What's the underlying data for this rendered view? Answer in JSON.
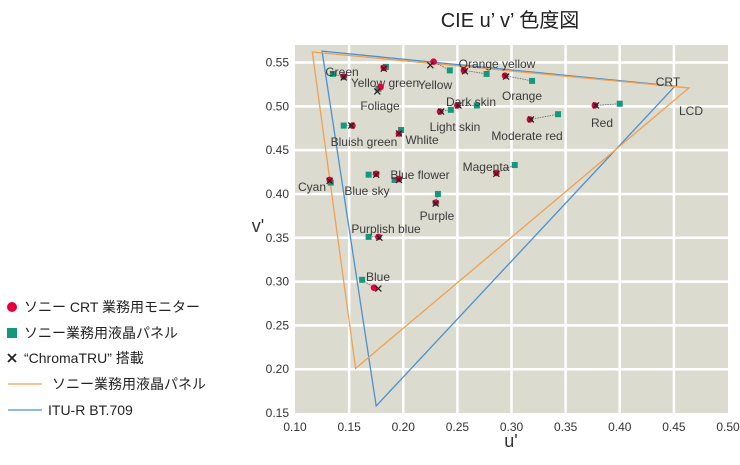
{
  "chart_data": {
    "type": "scatter",
    "title": "CIE u’ v’ 色度図",
    "xlabel": "u'",
    "ylabel": "v'",
    "xlim": [
      0.1,
      0.5
    ],
    "ylim": [
      0.15,
      0.57
    ],
    "xticks": [
      "0.10",
      "0.15",
      "0.20",
      "0.25",
      "0.30",
      "0.35",
      "0.40",
      "0.45",
      "0.50"
    ],
    "yticks": [
      "0.15",
      "0.20",
      "0.25",
      "0.30",
      "0.35",
      "0.40",
      "0.45",
      "0.50",
      "0.55"
    ],
    "grid": true,
    "legend_position": "left",
    "colors": {
      "crt": "#e4003a",
      "lcd": "#14977a",
      "chromatru": "#222222",
      "lcd_gamut": "#f0a050",
      "bt709": "#4a90d0",
      "plot_bg": "#dcdbd0"
    },
    "legend": [
      {
        "marker": "circle",
        "label": "ソニー CRT 業務用モニター"
      },
      {
        "marker": "square",
        "label": "ソニー業務用液晶パネル"
      },
      {
        "marker": "cross",
        "label": "“ChromaTRU” 搭載"
      },
      {
        "marker": "orange-line",
        "label": "ソニー業務用液晶パネル"
      },
      {
        "marker": "blue-line",
        "label": "ITU-R BT.709"
      }
    ],
    "gamuts": [
      {
        "name": "CRT",
        "series": "ITU-R BT.709",
        "color": "#4a90d0",
        "vertices": [
          [
            0.125,
            0.563
          ],
          [
            0.451,
            0.523
          ],
          [
            0.175,
            0.158
          ]
        ]
      },
      {
        "name": "LCD",
        "series": "ソニー業務用液晶パネル",
        "color": "#f0a050",
        "vertices": [
          [
            0.116,
            0.562
          ],
          [
            0.464,
            0.521
          ],
          [
            0.156,
            0.201
          ]
        ]
      }
    ],
    "patches": [
      {
        "name": "Green",
        "crt": [
          0.145,
          0.534
        ],
        "lcd": [
          0.135,
          0.537
        ],
        "chromatru": [
          0.145,
          0.533
        ]
      },
      {
        "name": "Yellow green",
        "crt": [
          0.182,
          0.544
        ],
        "lcd": [
          0.184,
          0.545
        ],
        "chromatru": [
          0.182,
          0.543
        ]
      },
      {
        "name": "Foliage",
        "crt": [
          0.179,
          0.522
        ],
        "lcd": [
          0.177,
          0.52
        ],
        "chromatru": [
          0.176,
          0.517
        ]
      },
      {
        "name": "Yellow",
        "crt": [
          0.228,
          0.551
        ],
        "lcd": [
          0.243,
          0.541
        ],
        "chromatru": [
          0.225,
          0.547
        ]
      },
      {
        "name": "Orange yellow",
        "crt": [
          0.256,
          0.541
        ],
        "lcd": [
          0.277,
          0.537
        ],
        "chromatru": [
          0.257,
          0.54
        ]
      },
      {
        "name": "Orange",
        "crt": [
          0.294,
          0.535
        ],
        "lcd": [
          0.319,
          0.529
        ],
        "chromatru": [
          0.295,
          0.534
        ]
      },
      {
        "name": "Dark skin",
        "crt": [
          0.25,
          0.501
        ],
        "lcd": [
          0.268,
          0.501
        ],
        "chromatru": [
          0.251,
          0.501
        ]
      },
      {
        "name": "Light skin",
        "crt": [
          0.234,
          0.494
        ],
        "lcd": [
          0.244,
          0.496
        ],
        "chromatru": [
          0.235,
          0.494
        ]
      },
      {
        "name": "Moderate red",
        "crt": [
          0.317,
          0.485
        ],
        "lcd": [
          0.343,
          0.491
        ],
        "chromatru": [
          0.318,
          0.485
        ]
      },
      {
        "name": "Red",
        "crt": [
          0.377,
          0.501
        ],
        "lcd": [
          0.4,
          0.503
        ],
        "chromatru": [
          0.378,
          0.501
        ]
      },
      {
        "name": "Bluish green",
        "crt": [
          0.153,
          0.478
        ],
        "lcd": [
          0.145,
          0.478
        ],
        "chromatru": [
          0.152,
          0.478
        ]
      },
      {
        "name": "Whlite",
        "crt": [
          0.196,
          0.469
        ],
        "lcd": [
          0.198,
          0.473
        ],
        "chromatru": [
          0.196,
          0.469
        ]
      },
      {
        "name": "Magenta",
        "crt": [
          0.286,
          0.424
        ],
        "lcd": [
          0.303,
          0.433
        ],
        "chromatru": [
          0.286,
          0.423
        ]
      },
      {
        "name": "Cyan",
        "crt": [
          0.132,
          0.416
        ],
        "lcd": [
          0.133,
          0.413
        ],
        "chromatru": [
          0.132,
          0.415
        ]
      },
      {
        "name": "Blue sky",
        "crt": [
          0.175,
          0.423
        ],
        "lcd": [
          0.168,
          0.422
        ],
        "chromatru": [
          0.175,
          0.422
        ]
      },
      {
        "name": "Blue flower",
        "crt": [
          0.196,
          0.417
        ],
        "lcd": [
          0.192,
          0.416
        ],
        "chromatru": [
          0.196,
          0.416
        ]
      },
      {
        "name": "Purple",
        "crt": [
          0.23,
          0.39
        ],
        "lcd": [
          0.232,
          0.4
        ],
        "chromatru": [
          0.23,
          0.389
        ]
      },
      {
        "name": "Purplish blue",
        "crt": [
          0.177,
          0.351
        ],
        "lcd": [
          0.168,
          0.351
        ],
        "chromatru": [
          0.178,
          0.35
        ]
      },
      {
        "name": "Blue",
        "crt": [
          0.173,
          0.293
        ],
        "lcd": [
          0.162,
          0.302
        ],
        "chromatru": [
          0.177,
          0.292
        ]
      }
    ]
  }
}
